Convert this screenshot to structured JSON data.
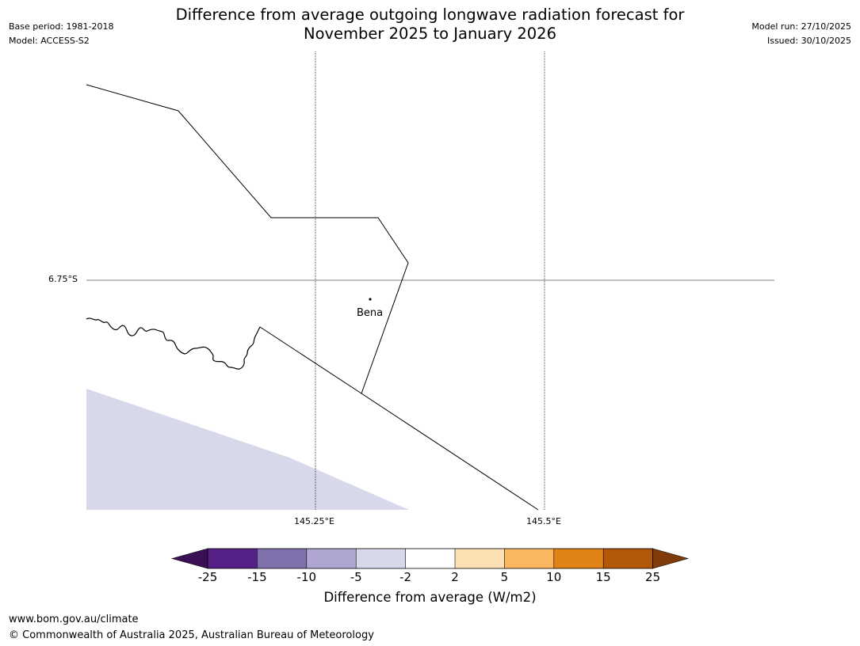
{
  "title": {
    "line1": "Difference from average outgoing longwave radiation forecast for",
    "line2": "November 2025 to January 2026"
  },
  "meta_left": {
    "base_period": "Base period: 1981-2018",
    "model": "Model: ACCESS-S2"
  },
  "meta_right": {
    "model_run": "Model run: 27/10/2025",
    "issued": "Issued: 30/10/2025"
  },
  "map": {
    "lat_label": "6.75°S",
    "lon_labels": [
      "145.25°E",
      "145.5°E"
    ],
    "town": "Bena",
    "shaded_category": "-5 to -2",
    "shaded_color": "#d7d8e9"
  },
  "colorbar": {
    "title": "Difference from average (W/m2)",
    "ticks": [
      "-25",
      "-15",
      "-10",
      "-5",
      "-2",
      "2",
      "5",
      "10",
      "15",
      "25"
    ],
    "colors": [
      "#3b0f55",
      "#562186",
      "#8170ae",
      "#afa7d2",
      "#d7d8e9",
      "#ffffff",
      "#fee0b5",
      "#fbb660",
      "#e08214",
      "#b35806",
      "#7f3b08"
    ]
  },
  "footer": {
    "url": "www.bom.gov.au/climate",
    "copyright": "© Commonwealth of Australia 2025, Australian Bureau of Meteorology"
  }
}
